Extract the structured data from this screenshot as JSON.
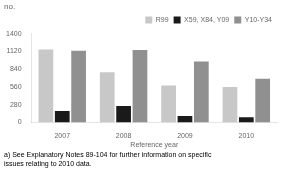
{
  "chart_data": {
    "type": "bar",
    "title": "no.",
    "xlabel": "Reference year",
    "categories": [
      "2007",
      "2008",
      "2009",
      "2010"
    ],
    "series": [
      {
        "name": "R99",
        "color": "#c8c8c8",
        "values": [
          1150,
          790,
          580,
          560
        ]
      },
      {
        "name": "X59, X84, Y09",
        "color": "#1a1a1a",
        "values": [
          180,
          260,
          100,
          80
        ]
      },
      {
        "name": "Y10-Y34",
        "color": "#909090",
        "values": [
          1130,
          1140,
          960,
          690
        ]
      }
    ],
    "ylim": [
      0,
      1400
    ],
    "yticks": [
      0,
      280,
      560,
      840,
      1120,
      1400
    ],
    "grid": false,
    "legend": "upper right",
    "annotation": "a) See Explanatory Notes 89-104 for further information on specific\nissues relating to 2010 data."
  }
}
